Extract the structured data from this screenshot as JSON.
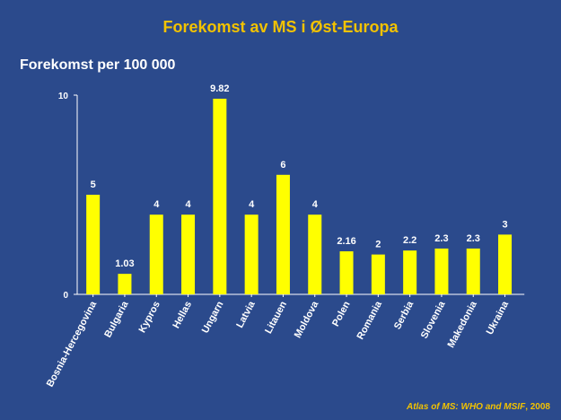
{
  "header": {
    "title": "Forekomst av MS i Øst-Europa"
  },
  "source": {
    "italic": "Atlas of MS: WHO and MSIF",
    "rest": ", 2008"
  },
  "colors": {
    "background": "#2b4a8c",
    "title": "#f2c200",
    "bar": "#ffff00",
    "axis": "#ffffff"
  },
  "chart_data": {
    "type": "bar",
    "title": "",
    "subtitle": "Forekomst per 100 000",
    "xlabel": "",
    "ylabel": "",
    "categories": [
      "Bosnia-Hercegovina",
      "Bulgaria",
      "Kypros",
      "Hellas",
      "Ungarn",
      "Latvia",
      "Litauen",
      "Moldova",
      "Polen",
      "Romania",
      "Serbia",
      "Slovenia",
      "Makedonia",
      "Ukraina"
    ],
    "values": [
      5,
      1.03,
      4,
      4,
      9.82,
      4,
      6,
      4,
      2.16,
      2,
      2.2,
      2.3,
      2.3,
      3
    ],
    "value_labels": [
      "5",
      "1.03",
      "4",
      "4",
      "9.82",
      "4",
      "6",
      "4",
      "2.16",
      "2",
      "2.2",
      "2.3",
      "2.3",
      "3"
    ],
    "ylim": [
      0,
      10
    ],
    "yticks": [
      "0",
      "10"
    ],
    "grid": false,
    "legend": "none"
  }
}
